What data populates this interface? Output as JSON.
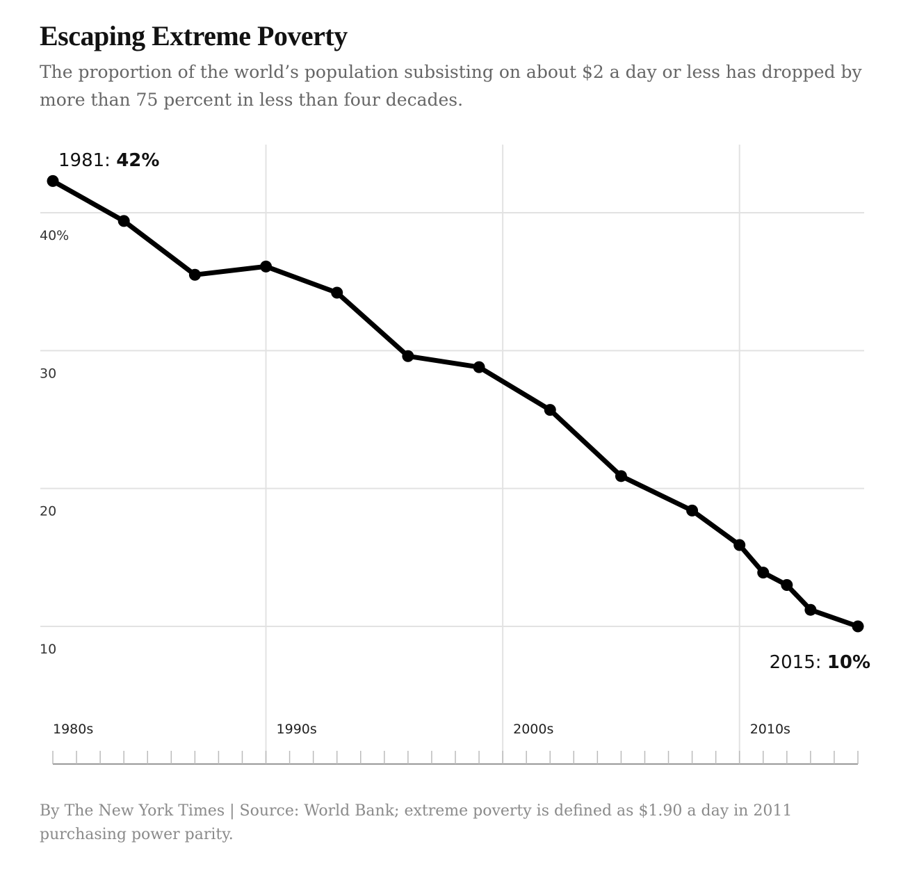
{
  "chart_data": {
    "type": "line",
    "title": "Escaping Extreme Poverty",
    "subtitle": "The proportion of the world’s population subsisting on about $2 a day or less has dropped by more than 75 percent in less than four decades.",
    "xlabel": "",
    "ylabel": "",
    "x": [
      1981,
      1984,
      1987,
      1990,
      1993,
      1996,
      1999,
      2002,
      2005,
      2008,
      2010,
      2011,
      2012,
      2013,
      2015
    ],
    "series": [
      {
        "values": [
          42.3,
          39.4,
          35.5,
          36.1,
          34.2,
          29.6,
          28.8,
          25.7,
          20.9,
          18.4,
          15.9,
          13.9,
          13.0,
          11.2,
          10.0
        ]
      }
    ],
    "xlim": [
      1981,
      2015
    ],
    "ylim": [
      4,
      47
    ],
    "y_ticks": [
      40,
      30,
      20,
      10
    ],
    "y_tick_labels": [
      "40%",
      "30",
      "20",
      "10"
    ],
    "x_decades": [
      1980,
      1990,
      2000,
      2010
    ],
    "x_decade_labels": [
      "1980s",
      "1990s",
      "2000s",
      "2010s"
    ],
    "grid": true,
    "legend": "none",
    "line_color": "#000000",
    "annotations": [
      {
        "year": "1981: ",
        "value": "42%",
        "position": "above-start"
      },
      {
        "year": "2015: ",
        "value": "10%",
        "position": "below-end"
      }
    ]
  },
  "footer": "By The New York Times | Source: World Bank; extreme poverty is defined as $1.90 a day in 2011 purchasing power parity."
}
